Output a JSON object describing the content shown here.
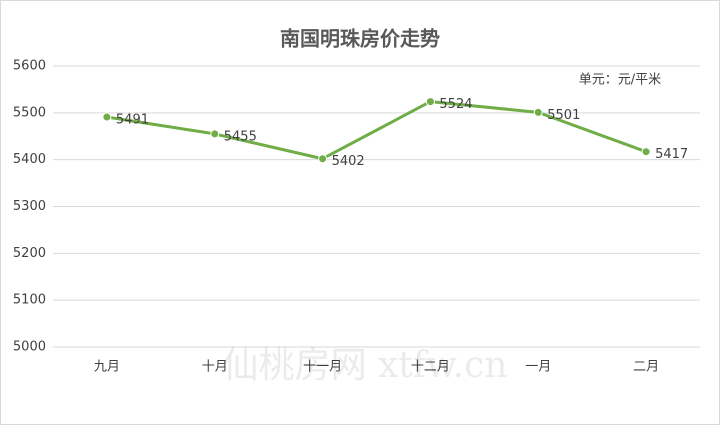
{
  "chart_data": {
    "type": "line",
    "title": "南国明珠房价走势",
    "annotation": "单元：元/平米",
    "watermark": "仙桃房网 xtfw.cn",
    "categories": [
      "九月",
      "十月",
      "十一月",
      "十二月",
      "一月",
      "二月"
    ],
    "values": [
      5491,
      5455,
      5402,
      5524,
      5501,
      5417
    ],
    "color": "#70ad47",
    "ylim": [
      5000,
      5600
    ],
    "yticks": [
      5000,
      5100,
      5200,
      5300,
      5400,
      5500,
      5600
    ],
    "grid": true
  }
}
